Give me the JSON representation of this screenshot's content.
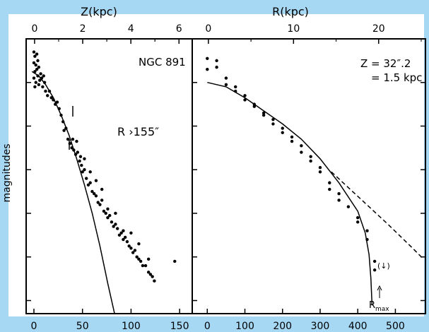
{
  "chart_data": [
    {
      "type": "scatter",
      "ylabel": "magnitudes",
      "top_axis": {
        "label": "Z(kpc)",
        "ticks": [
          "0",
          "2",
          "4",
          "6"
        ],
        "range": [
          -0.35,
          6.55
        ]
      },
      "bottom_axis": {
        "ticks": [
          "0",
          "50",
          "100",
          "150"
        ],
        "range": [
          -8,
          163
        ]
      },
      "y_range": [
        1.0,
        7.3
      ],
      "y_scale": "magnitudes, relative, no tick labels",
      "annotations": [
        "NGC 891",
        "R ›155″"
      ],
      "series": [
        {
          "kind": "points",
          "values": [
            [
              0,
              1.3
            ],
            [
              1,
              1.4
            ],
            [
              3,
              1.35
            ],
            [
              0,
              1.55
            ],
            [
              2,
              1.6
            ],
            [
              4,
              1.5
            ],
            [
              1,
              1.75
            ],
            [
              3,
              1.7
            ],
            [
              5,
              1.65
            ],
            [
              7,
              1.8
            ],
            [
              0,
              1.9
            ],
            [
              2,
              2.0
            ],
            [
              4,
              1.85
            ],
            [
              6,
              1.95
            ],
            [
              8,
              1.9
            ],
            [
              10,
              1.85
            ],
            [
              1,
              2.1
            ],
            [
              5,
              2.05
            ],
            [
              9,
              2.1
            ],
            [
              11,
              2.0
            ],
            [
              12,
              2.2
            ],
            [
              14,
              2.3
            ],
            [
              16,
              2.2
            ],
            [
              18,
              2.35
            ],
            [
              20,
              2.4
            ],
            [
              22,
              2.5
            ],
            [
              24,
              2.45
            ],
            [
              26,
              2.6
            ],
            [
              28,
              2.75
            ],
            [
              30,
              2.9
            ],
            [
              31,
              3.1
            ],
            [
              33,
              3.05
            ],
            [
              35,
              3.3
            ],
            [
              37,
              3.4
            ],
            [
              39,
              3.5
            ],
            [
              41,
              3.55
            ],
            [
              43,
              3.65
            ],
            [
              45,
              3.6
            ],
            [
              47,
              3.8
            ],
            [
              49,
              3.9
            ],
            [
              50,
              4.05
            ],
            [
              52,
              4.0
            ],
            [
              54,
              4.2
            ],
            [
              56,
              4.35
            ],
            [
              58,
              4.3
            ],
            [
              60,
              4.5
            ],
            [
              62,
              4.55
            ],
            [
              64,
              4.6
            ],
            [
              66,
              4.75
            ],
            [
              68,
              4.8
            ],
            [
              70,
              4.7
            ],
            [
              72,
              4.95
            ],
            [
              74,
              5.0
            ],
            [
              76,
              5.1
            ],
            [
              78,
              5.05
            ],
            [
              80,
              5.2
            ],
            [
              82,
              5.3
            ],
            [
              84,
              5.25
            ],
            [
              86,
              5.35
            ],
            [
              88,
              5.5
            ],
            [
              90,
              5.45
            ],
            [
              92,
              5.6
            ],
            [
              94,
              5.55
            ],
            [
              96,
              5.65
            ],
            [
              98,
              5.75
            ],
            [
              100,
              5.8
            ],
            [
              102,
              5.9
            ],
            [
              104,
              5.85
            ],
            [
              106,
              6.0
            ],
            [
              108,
              6.05
            ],
            [
              110,
              6.1
            ],
            [
              112,
              6.2
            ],
            [
              115,
              6.2
            ],
            [
              118,
              6.35
            ],
            [
              120,
              6.4
            ],
            [
              122,
              6.45
            ],
            [
              124,
              6.55
            ],
            [
              40,
              3.3
            ],
            [
              44,
              3.35
            ],
            [
              48,
              3.7
            ],
            [
              52,
              3.75
            ],
            [
              58,
              4.05
            ],
            [
              64,
              4.25
            ],
            [
              70,
              4.45
            ],
            [
              76,
              4.9
            ],
            [
              84,
              5.0
            ],
            [
              92,
              5.4
            ],
            [
              100,
              5.45
            ],
            [
              108,
              5.7
            ],
            [
              118,
              6.05
            ],
            [
              145,
              6.1
            ]
          ]
        },
        {
          "kind": "line",
          "values": [
            [
              -2,
              1.75
            ],
            [
              5,
              1.85
            ],
            [
              12,
              2.05
            ],
            [
              20,
              2.35
            ],
            [
              28,
              2.75
            ],
            [
              36,
              3.2
            ],
            [
              44,
              3.75
            ],
            [
              52,
              4.35
            ],
            [
              60,
              5.0
            ],
            [
              68,
              5.75
            ],
            [
              76,
              6.6
            ],
            [
              83,
              7.3
            ]
          ]
        }
      ]
    },
    {
      "type": "scatter",
      "top_axis": {
        "label": "R(kpc)",
        "ticks": [
          "0",
          "10",
          "20"
        ],
        "range": [
          -1.9,
          25.5
        ]
      },
      "bottom_axis": {
        "ticks": [
          "0",
          "100",
          "200",
          "300",
          "400",
          "500"
        ],
        "range": [
          -40,
          580
        ]
      },
      "y_range": [
        1.0,
        7.3
      ],
      "annotations": [
        "Z = 32″.2",
        "= 1.5 kpc",
        "R",
        "max",
        "(↓)"
      ],
      "series": [
        {
          "kind": "points",
          "values": [
            [
              0,
              1.45
            ],
            [
              0,
              1.7
            ],
            [
              25,
              1.5
            ],
            [
              25,
              1.65
            ],
            [
              50,
              1.9
            ],
            [
              50,
              2.05
            ],
            [
              75,
              2.1
            ],
            [
              75,
              2.2
            ],
            [
              100,
              2.3
            ],
            [
              100,
              2.4
            ],
            [
              125,
              2.5
            ],
            [
              125,
              2.55
            ],
            [
              150,
              2.7
            ],
            [
              150,
              2.75
            ],
            [
              175,
              2.85
            ],
            [
              175,
              2.95
            ],
            [
              200,
              3.05
            ],
            [
              200,
              3.15
            ],
            [
              225,
              3.25
            ],
            [
              225,
              3.35
            ],
            [
              250,
              3.45
            ],
            [
              250,
              3.6
            ],
            [
              275,
              3.7
            ],
            [
              275,
              3.8
            ],
            [
              300,
              3.95
            ],
            [
              300,
              4.05
            ],
            [
              325,
              4.3
            ],
            [
              325,
              4.45
            ],
            [
              350,
              4.55
            ],
            [
              350,
              4.7
            ],
            [
              375,
              4.85
            ],
            [
              400,
              5.1
            ],
            [
              400,
              5.2
            ],
            [
              425,
              5.4
            ],
            [
              425,
              5.6
            ],
            [
              445,
              6.1
            ],
            [
              445,
              6.3
            ]
          ]
        },
        {
          "kind": "line",
          "values": [
            [
              0,
              2.0
            ],
            [
              50,
              2.1
            ],
            [
              100,
              2.35
            ],
            [
              150,
              2.65
            ],
            [
              200,
              2.95
            ],
            [
              250,
              3.3
            ],
            [
              300,
              3.75
            ],
            [
              350,
              4.3
            ],
            [
              400,
              4.95
            ],
            [
              420,
              5.45
            ],
            [
              430,
              5.95
            ],
            [
              435,
              6.5
            ],
            [
              438,
              7.1
            ]
          ]
        },
        {
          "kind": "dashed line",
          "values": [
            [
              330,
              4.05
            ],
            [
              380,
              4.45
            ],
            [
              430,
              4.85
            ],
            [
              480,
              5.25
            ],
            [
              540,
              5.75
            ],
            [
              575,
              6.05
            ]
          ]
        }
      ]
    }
  ]
}
